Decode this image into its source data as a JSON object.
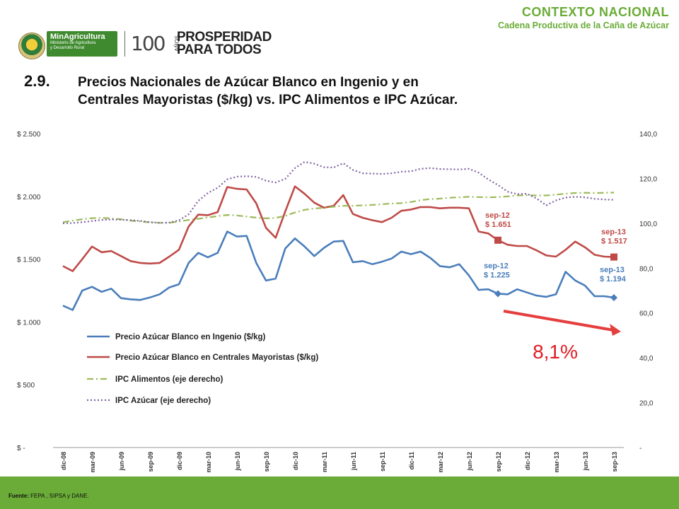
{
  "header": {
    "context_title": "CONTEXTO NACIONAL",
    "context_subtitle": "Cadena Productiva de la Caña de Azúcar"
  },
  "logos": {
    "ministry_name": "MinAgricultura",
    "ministry_sub1": "Ministerio de Agricultura",
    "ministry_sub2": "y Desarrollo Rural",
    "anniversary": "100",
    "anniversary_suffix": "AÑOS",
    "slogan_line1": "PROSPERIDAD",
    "slogan_line2": "PARA TODOS"
  },
  "title": {
    "number": "2.9.",
    "line1": "Precios Nacionales de Azúcar Blanco en Ingenio y en",
    "line2": "Centrales Mayoristas ($/kg) vs. IPC Alimentos e IPC Azúcar."
  },
  "chart_data": {
    "type": "line",
    "x": [
      "dic-08",
      "ene-09",
      "feb-09",
      "mar-09",
      "abr-09",
      "may-09",
      "jun-09",
      "jul-09",
      "ago-09",
      "sep-09",
      "oct-09",
      "nov-09",
      "dic-09",
      "ene-10",
      "feb-10",
      "mar-10",
      "abr-10",
      "may-10",
      "jun-10",
      "jul-10",
      "ago-10",
      "sep-10",
      "oct-10",
      "nov-10",
      "dic-10",
      "ene-11",
      "feb-11",
      "mar-11",
      "abr-11",
      "may-11",
      "jun-11",
      "jul-11",
      "ago-11",
      "sep-11",
      "oct-11",
      "nov-11",
      "dic-11",
      "ene-12",
      "feb-12",
      "mar-12",
      "abr-12",
      "may-12",
      "jun-12",
      "jul-12",
      "ago-12",
      "sep-12",
      "oct-12",
      "nov-12",
      "dic-12",
      "ene-13",
      "feb-13",
      "mar-13",
      "abr-13",
      "may-13",
      "jun-13",
      "jul-13",
      "ago-13",
      "sep-13"
    ],
    "x_tick_labels": [
      "dic-08",
      "mar-09",
      "jun-09",
      "sep-09",
      "dic-09",
      "mar-10",
      "jun-10",
      "sep-10",
      "dic-10",
      "mar-11",
      "jun-11",
      "sep-11",
      "dic-11",
      "mar-12",
      "jun-12",
      "sep-12",
      "dic-12",
      "mar-13",
      "jun-13",
      "sep-13"
    ],
    "y_left_tick_labels": [
      "$ -",
      "$ 500",
      "$ 1.000",
      "$ 1.500",
      "$ 2.000",
      "$ 2.500"
    ],
    "y_left_range": [
      0,
      2500
    ],
    "y_right_tick_labels": [
      "-",
      "20,0",
      "40,0",
      "60,0",
      "80,0",
      "100,0",
      "120,0",
      "140,0"
    ],
    "y_right_range": [
      0,
      140
    ],
    "grid": false,
    "legend_placement": "center-left",
    "series": [
      {
        "name": "Precio Azúcar Blanco en Ingenio ($/kg)",
        "axis": "left",
        "color": "#4a7ebb",
        "style": "solid",
        "values": [
          1130,
          1095,
          1250,
          1280,
          1240,
          1265,
          1190,
          1180,
          1175,
          1195,
          1220,
          1275,
          1300,
          1470,
          1550,
          1515,
          1550,
          1720,
          1680,
          1685,
          1470,
          1330,
          1345,
          1585,
          1665,
          1600,
          1525,
          1590,
          1640,
          1645,
          1475,
          1485,
          1460,
          1480,
          1505,
          1560,
          1540,
          1560,
          1510,
          1445,
          1435,
          1460,
          1370,
          1255,
          1260,
          1225,
          1220,
          1260,
          1235,
          1210,
          1200,
          1220,
          1400,
          1330,
          1290,
          1205,
          1205,
          1194
        ]
      },
      {
        "name": "Precio Azúcar Blanco en Centrales Mayoristas ($/kg)",
        "axis": "left",
        "color": "#be4b48",
        "style": "solid",
        "values": [
          1445,
          1405,
          1500,
          1600,
          1555,
          1565,
          1525,
          1485,
          1470,
          1465,
          1470,
          1520,
          1575,
          1760,
          1855,
          1850,
          1875,
          2075,
          2060,
          2055,
          1945,
          1750,
          1670,
          1880,
          2080,
          2020,
          1950,
          1910,
          1925,
          2010,
          1860,
          1830,
          1810,
          1795,
          1830,
          1885,
          1895,
          1915,
          1915,
          1905,
          1910,
          1910,
          1905,
          1720,
          1705,
          1651,
          1615,
          1605,
          1605,
          1570,
          1530,
          1520,
          1575,
          1640,
          1595,
          1535,
          1520,
          1517
        ]
      },
      {
        "name": "IPC Alimentos (eje derecho)",
        "axis": "right",
        "color": "#9bbb59",
        "style": "dashdot",
        "values": [
          100.5,
          101.2,
          101.8,
          102.3,
          102.4,
          102.2,
          101.8,
          101.2,
          100.8,
          100.4,
          100.2,
          100.2,
          100.8,
          101.5,
          102.0,
          102.6,
          103.2,
          103.7,
          103.5,
          103.0,
          102.5,
          102.2,
          102.4,
          103.3,
          104.8,
          106.0,
          106.6,
          106.9,
          107.4,
          107.8,
          107.8,
          108.0,
          108.2,
          108.5,
          108.8,
          109.0,
          109.5,
          110.3,
          110.8,
          111.0,
          111.4,
          111.6,
          111.8,
          111.7,
          111.6,
          111.7,
          112.0,
          112.4,
          112.5,
          112.4,
          112.4,
          112.8,
          113.2,
          113.5,
          113.6,
          113.5,
          113.6,
          113.7
        ]
      },
      {
        "name": "IPC Azúcar (eje derecho)",
        "axis": "right",
        "color": "#8064a2",
        "style": "dotted",
        "values": [
          100.0,
          100.1,
          100.5,
          101.0,
          101.5,
          101.7,
          101.6,
          101.4,
          101.1,
          100.5,
          100.2,
          100.3,
          101.3,
          104.0,
          110.0,
          113.5,
          115.8,
          119.6,
          120.8,
          121.0,
          120.7,
          119.0,
          118.2,
          119.8,
          124.6,
          127.4,
          126.6,
          125.0,
          124.9,
          126.8,
          123.8,
          122.3,
          122.2,
          122.0,
          122.3,
          123.0,
          123.2,
          124.3,
          124.6,
          124.2,
          124.1,
          124.0,
          124.3,
          122.6,
          119.6,
          117.1,
          114.1,
          113.0,
          113.2,
          111.1,
          108.0,
          110.2,
          111.5,
          111.8,
          111.6,
          110.9,
          110.6,
          110.5
        ]
      }
    ],
    "annotations": [
      {
        "date": "sep-12",
        "label": "sep-12",
        "value_label": "$ 1.651",
        "series": "Centrales",
        "color": "#be4b48"
      },
      {
        "date": "sep-13",
        "label": "sep-13",
        "value_label": "$ 1.517",
        "series": "Centrales",
        "color": "#be4b48"
      },
      {
        "date": "sep-12",
        "label": "sep-12",
        "value_label": "$ 1.225",
        "series": "Ingenio",
        "color": "#4a7ebb"
      },
      {
        "date": "sep-13",
        "label": "sep-13",
        "value_label": "$ 1.194",
        "series": "Ingenio",
        "color": "#4a7ebb"
      }
    ],
    "trend_arrow_label": "8,1%"
  },
  "footer": {
    "source_label": "Fuente:",
    "source_text": "FEPA , SIPSA y DANE."
  },
  "colors": {
    "brand_green": "#6aac37",
    "arrow_red": "#e53e3e"
  }
}
